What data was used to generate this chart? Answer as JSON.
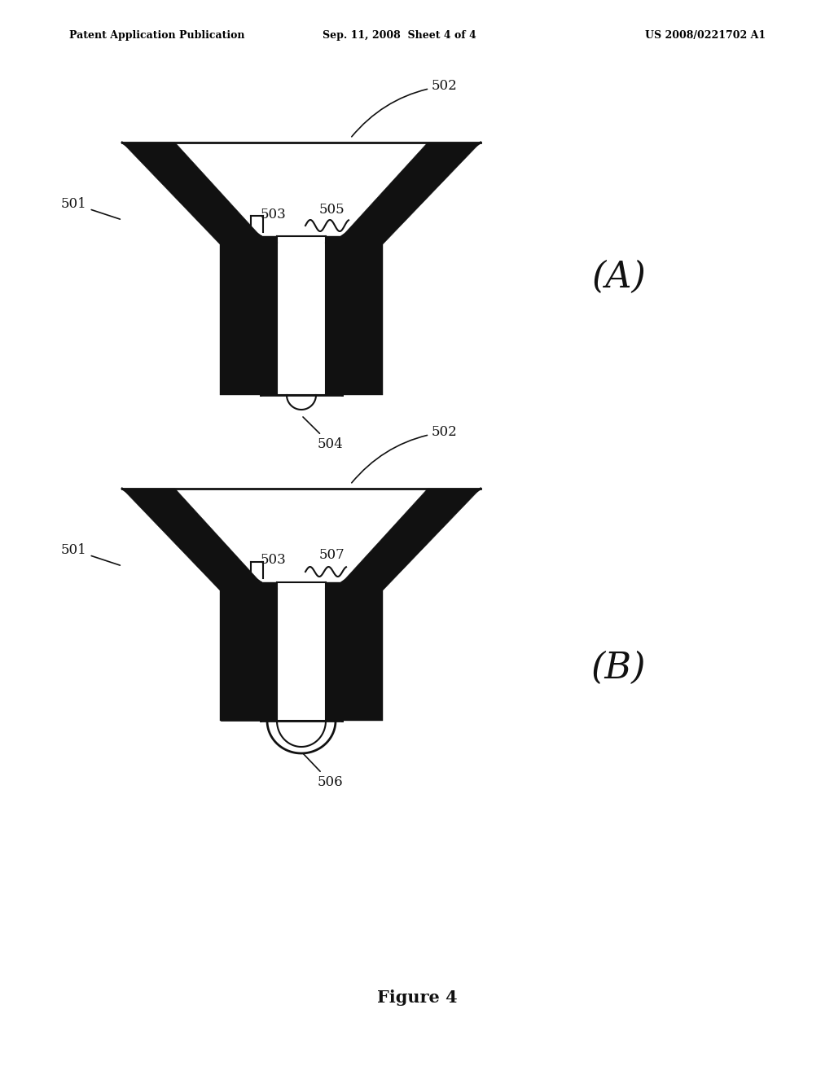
{
  "header_left": "Patent Application Publication",
  "header_mid": "Sep. 11, 2008  Sheet 4 of 4",
  "header_right": "US 2008/0221702 A1",
  "figure_caption": "Figure 4",
  "bg_color": "#ffffff",
  "black": "#111111",
  "white": "#ffffff",
  "label_A": "(A)",
  "label_B": "(B)"
}
